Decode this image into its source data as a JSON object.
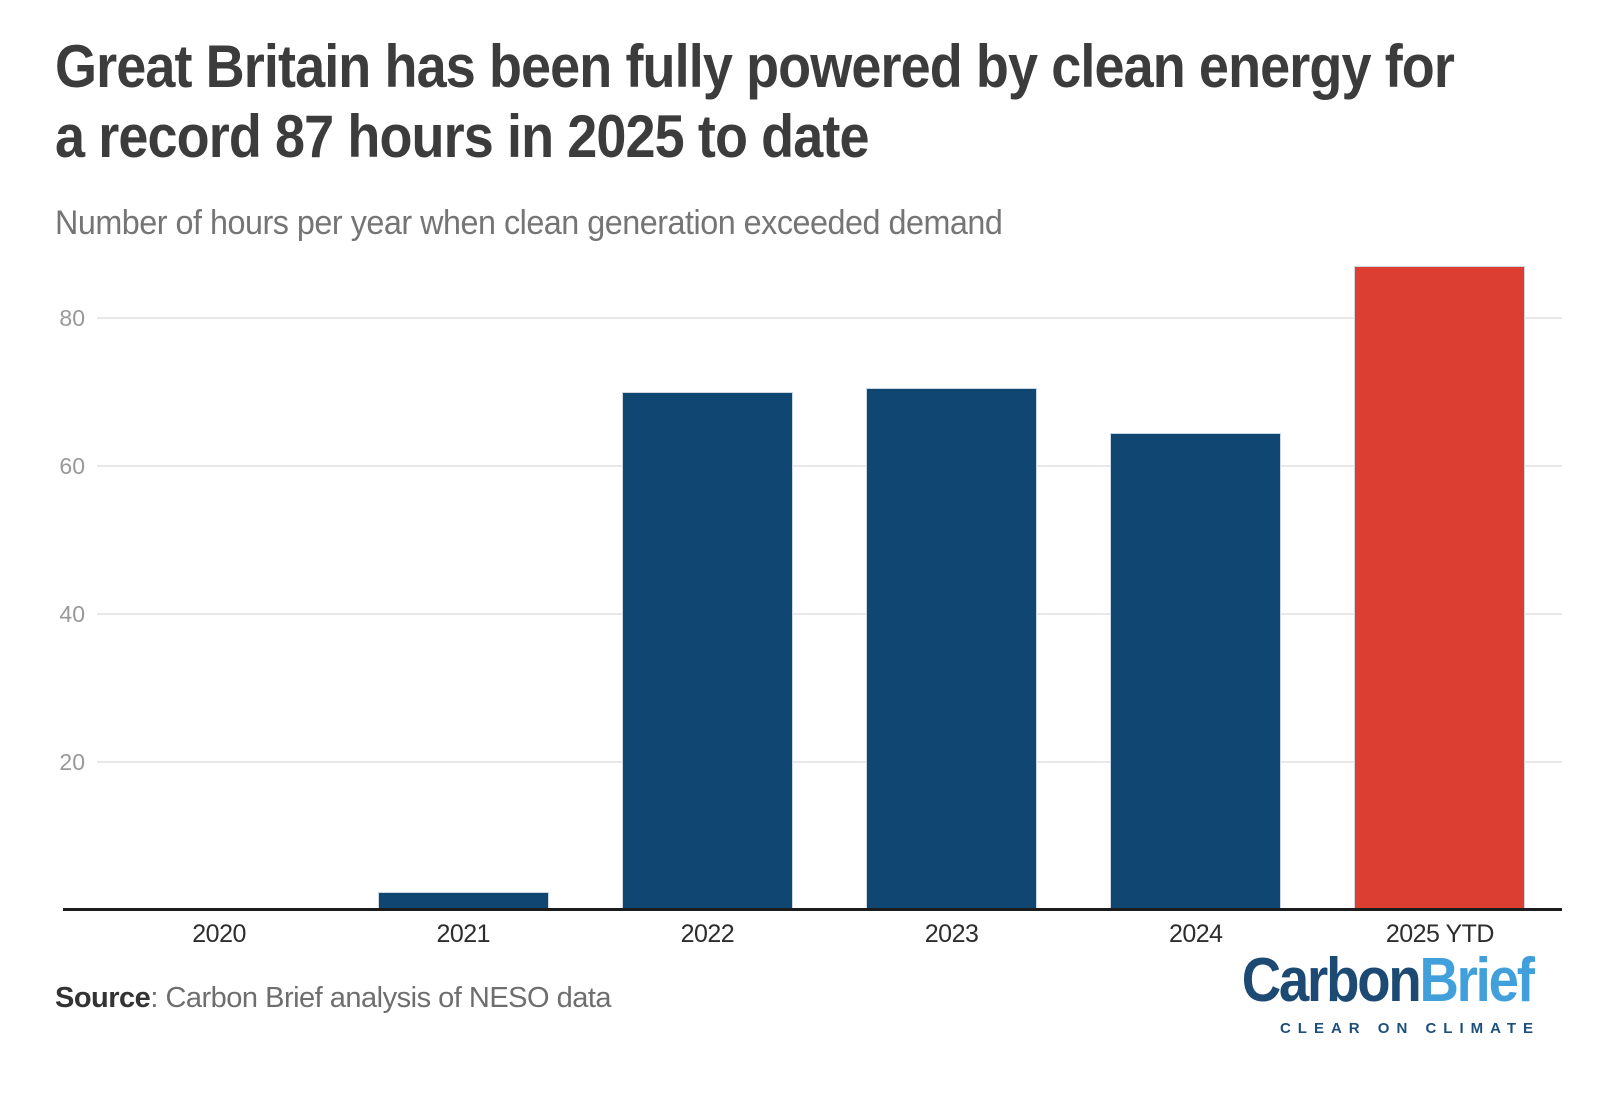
{
  "header": {
    "title_line1": "Great Britain has been fully powered by clean energy for",
    "title_line2": "a record 87 hours in 2025 to date",
    "subtitle": "Number of hours per year when clean generation exceeded demand"
  },
  "chart_data": {
    "type": "bar",
    "title": "Great Britain has been fully powered by clean energy for a record 87 hours in 2025 to date",
    "subtitle": "Number of hours per year when clean generation exceeded demand",
    "categories": [
      "2020",
      "2021",
      "2022",
      "2023",
      "2024",
      "2025 YTD"
    ],
    "values": [
      0,
      2.5,
      70,
      70.5,
      64.5,
      87
    ],
    "bar_colors": [
      "#0f4672",
      "#0f4672",
      "#0f4672",
      "#0f4672",
      "#0f4672",
      "#dd3e32"
    ],
    "highlight_category": "2025 YTD",
    "xlabel": "",
    "ylabel": "Number of hours",
    "yticks": [
      20,
      40,
      60,
      80
    ],
    "ylim": [
      0,
      88
    ],
    "grid": true,
    "legend": "none"
  },
  "footer": {
    "source_label": "Source",
    "source_rest": ": Carbon Brief analysis of NESO data"
  },
  "logo": {
    "part1": "Carbon",
    "part2": "Brief",
    "tagline": "CLEAR ON CLIMATE",
    "color_dark": "#1c4a73",
    "color_light": "#41a0dc"
  },
  "colors": {
    "bar_blue": "#0f4672",
    "bar_red": "#dd3e32",
    "gridline": "#e8e8e8",
    "axis_line": "#1c1c1c",
    "y_tick_label": "#999999",
    "x_tick_label": "#2d2d2d",
    "title": "#3c3c3c",
    "subtitle": "#757575",
    "source": "#6e6e6e"
  }
}
